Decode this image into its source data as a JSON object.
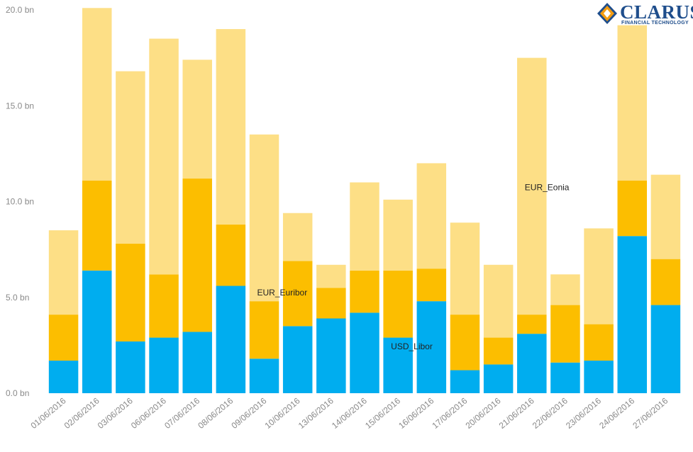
{
  "brand": {
    "name": "CLARUS",
    "tagline": "FINANCIAL TECHNOLOGY",
    "colors": {
      "navy": "#1f4e8c",
      "orange": "#f39c12"
    }
  },
  "chart_data": {
    "type": "bar",
    "stacked": true,
    "title": "",
    "xlabel": "",
    "ylabel": "",
    "ylim": [
      0,
      20
    ],
    "yticks": [
      0,
      5,
      10,
      15,
      20
    ],
    "ytick_labels": [
      "0.0 bn",
      "5.0 bn",
      "10.0 bn",
      "15.0 bn",
      "20.0 bn"
    ],
    "grid": false,
    "legend": "none",
    "categories": [
      "01/06/2016",
      "02/06/2016",
      "03/06/2016",
      "06/06/2016",
      "07/06/2016",
      "08/06/2016",
      "09/06/2016",
      "10/06/2016",
      "13/06/2016",
      "14/06/2016",
      "15/06/2016",
      "16/06/2016",
      "17/06/2016",
      "20/06/2016",
      "21/06/2016",
      "22/06/2016",
      "23/06/2016",
      "24/06/2016",
      "27/06/2016"
    ],
    "series": [
      {
        "name": "USD_Libor",
        "color": "#00adef",
        "values": [
          1.7,
          6.4,
          2.7,
          2.9,
          3.2,
          5.6,
          1.8,
          3.5,
          3.9,
          4.2,
          2.9,
          4.8,
          1.2,
          1.5,
          3.1,
          1.6,
          1.7,
          8.2,
          4.6
        ]
      },
      {
        "name": "EUR_Euribor",
        "color": "#fcbe00",
        "values": [
          2.4,
          4.7,
          5.1,
          3.3,
          8.0,
          3.2,
          3.0,
          3.4,
          1.6,
          2.2,
          3.5,
          1.7,
          2.9,
          1.4,
          1.0,
          3.0,
          1.9,
          2.9,
          2.4
        ]
      },
      {
        "name": "EUR_Eonia",
        "color": "#fddf86",
        "values": [
          4.4,
          9.0,
          9.0,
          12.3,
          6.2,
          10.2,
          8.7,
          2.5,
          1.2,
          4.6,
          3.7,
          5.5,
          4.8,
          3.8,
          13.4,
          1.6,
          5.0,
          8.1,
          4.4
        ]
      }
    ],
    "annotations": [
      {
        "text": "EUR_Euribor",
        "category": "09/06/2016",
        "value": 5.1
      },
      {
        "text": "USD_Libor",
        "category": "15/06/2016",
        "value": 2.3
      },
      {
        "text": "EUR_Eonia",
        "category": "21/06/2016",
        "value": 10.6
      }
    ]
  }
}
